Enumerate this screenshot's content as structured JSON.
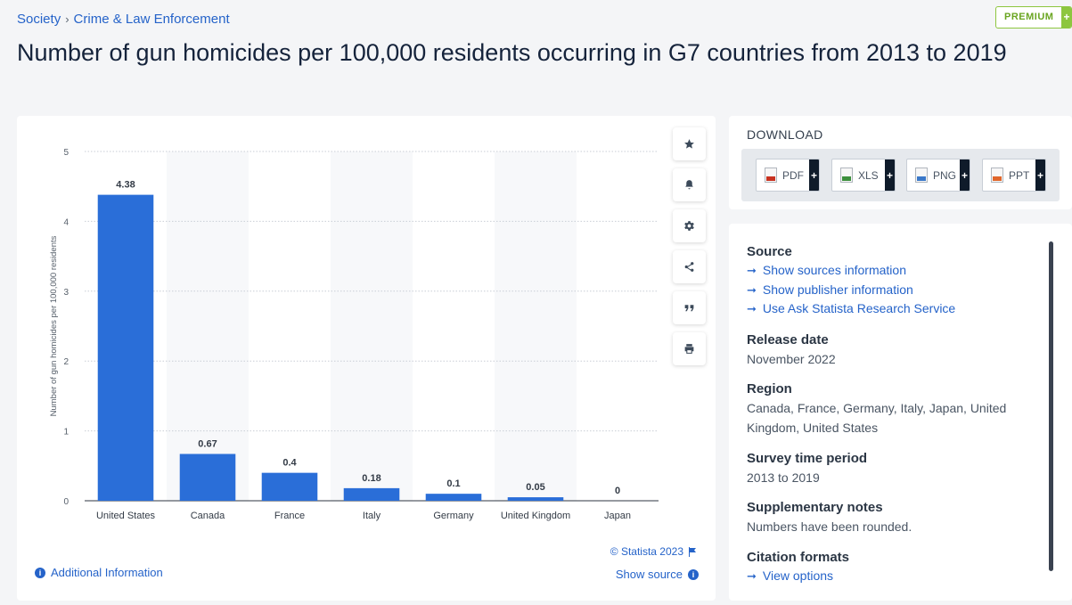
{
  "breadcrumb": {
    "items": [
      "Society",
      "Crime & Law Enforcement"
    ],
    "separator": "›"
  },
  "premium": {
    "label": "PREMIUM",
    "plus": "+"
  },
  "page_title": "Number of gun homicides per 100,000 residents occurring in G7 countries from 2013 to 2019",
  "chart_card": {
    "copyright": "© Statista 2023",
    "additional_info": "Additional Information",
    "show_source": "Show source",
    "tools": [
      "star-icon",
      "bell-icon",
      "gear-icon",
      "share-icon",
      "quote-icon",
      "print-icon"
    ]
  },
  "chart_data": {
    "type": "bar",
    "categories": [
      "United States",
      "Canada",
      "France",
      "Italy",
      "Germany",
      "United Kingdom",
      "Japan"
    ],
    "values": [
      4.38,
      0.67,
      0.4,
      0.18,
      0.1,
      0.05,
      0
    ],
    "data_labels": [
      "4.38",
      "0.67",
      "0.4",
      "0.18",
      "0.1",
      "0.05",
      "0"
    ],
    "title": "",
    "xlabel": "",
    "ylabel": "Number of gun homicides per 100,000 residents",
    "ylim": [
      0,
      5
    ],
    "yticks": [
      0,
      1,
      2,
      3,
      4,
      5
    ],
    "grid": true,
    "bar_color": "#2a6ed8",
    "alternating_band_color": "#f7f8fa"
  },
  "download": {
    "header": "DOWNLOAD",
    "buttons": [
      {
        "label": "PDF",
        "color": "#c8311f"
      },
      {
        "label": "XLS",
        "color": "#3c8f3c"
      },
      {
        "label": "PNG",
        "color": "#3a78c9"
      },
      {
        "label": "PPT",
        "color": "#e0662b"
      }
    ],
    "plus": "+"
  },
  "meta": {
    "source": {
      "heading": "Source",
      "links": [
        "Show sources information",
        "Show publisher information",
        "Use Ask Statista Research Service"
      ]
    },
    "release_date": {
      "heading": "Release date",
      "value": "November 2022"
    },
    "region": {
      "heading": "Region",
      "value_line1": "Canada, France, Germany, Italy, Japan, United",
      "value_line2": "Kingdom, United States"
    },
    "survey_period": {
      "heading": "Survey time period",
      "value": "2013 to 2019"
    },
    "supplementary": {
      "heading": "Supplementary notes",
      "value": "Numbers have been rounded."
    },
    "citation": {
      "heading": "Citation formats",
      "link": "View options"
    }
  }
}
